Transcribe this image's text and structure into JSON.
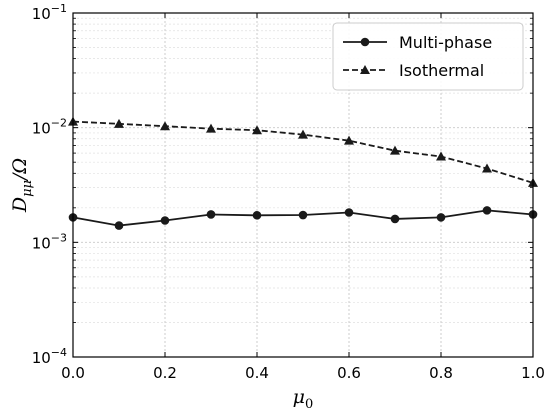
{
  "chart_data": {
    "type": "line",
    "xlabel": "μ0",
    "ylabel": "Dμμ/Ω",
    "xlim": [
      0.0,
      1.0
    ],
    "ylim": [
      0.0001,
      0.1
    ],
    "yscale": "log",
    "grid": true,
    "legend_position": "top-right",
    "x_ticks": [
      "0.0",
      "0.2",
      "0.4",
      "0.6",
      "0.8",
      "1.0"
    ],
    "y_ticks": [
      {
        "value": 0.0001,
        "base": "10",
        "exp": "−4"
      },
      {
        "value": 0.001,
        "base": "10",
        "exp": "−3"
      },
      {
        "value": 0.01,
        "base": "10",
        "exp": "−2"
      },
      {
        "value": 0.1,
        "base": "10",
        "exp": "−1"
      }
    ],
    "x": [
      0.0,
      0.1,
      0.2,
      0.3,
      0.4,
      0.5,
      0.6,
      0.7,
      0.8,
      0.9,
      1.0
    ],
    "series": [
      {
        "name": "Multi-phase",
        "marker": "circle",
        "linestyle": "solid",
        "color": "#1a1a1a",
        "values": [
          0.00165,
          0.0014,
          0.00155,
          0.00175,
          0.00172,
          0.00173,
          0.00182,
          0.0016,
          0.00165,
          0.0019,
          0.00175
        ]
      },
      {
        "name": "Isothermal",
        "marker": "triangle",
        "linestyle": "dashed",
        "color": "#1a1a1a",
        "values": [
          0.0113,
          0.0108,
          0.0103,
          0.0098,
          0.0095,
          0.0087,
          0.0077,
          0.0063,
          0.0056,
          0.0044,
          0.0033
        ]
      }
    ]
  }
}
